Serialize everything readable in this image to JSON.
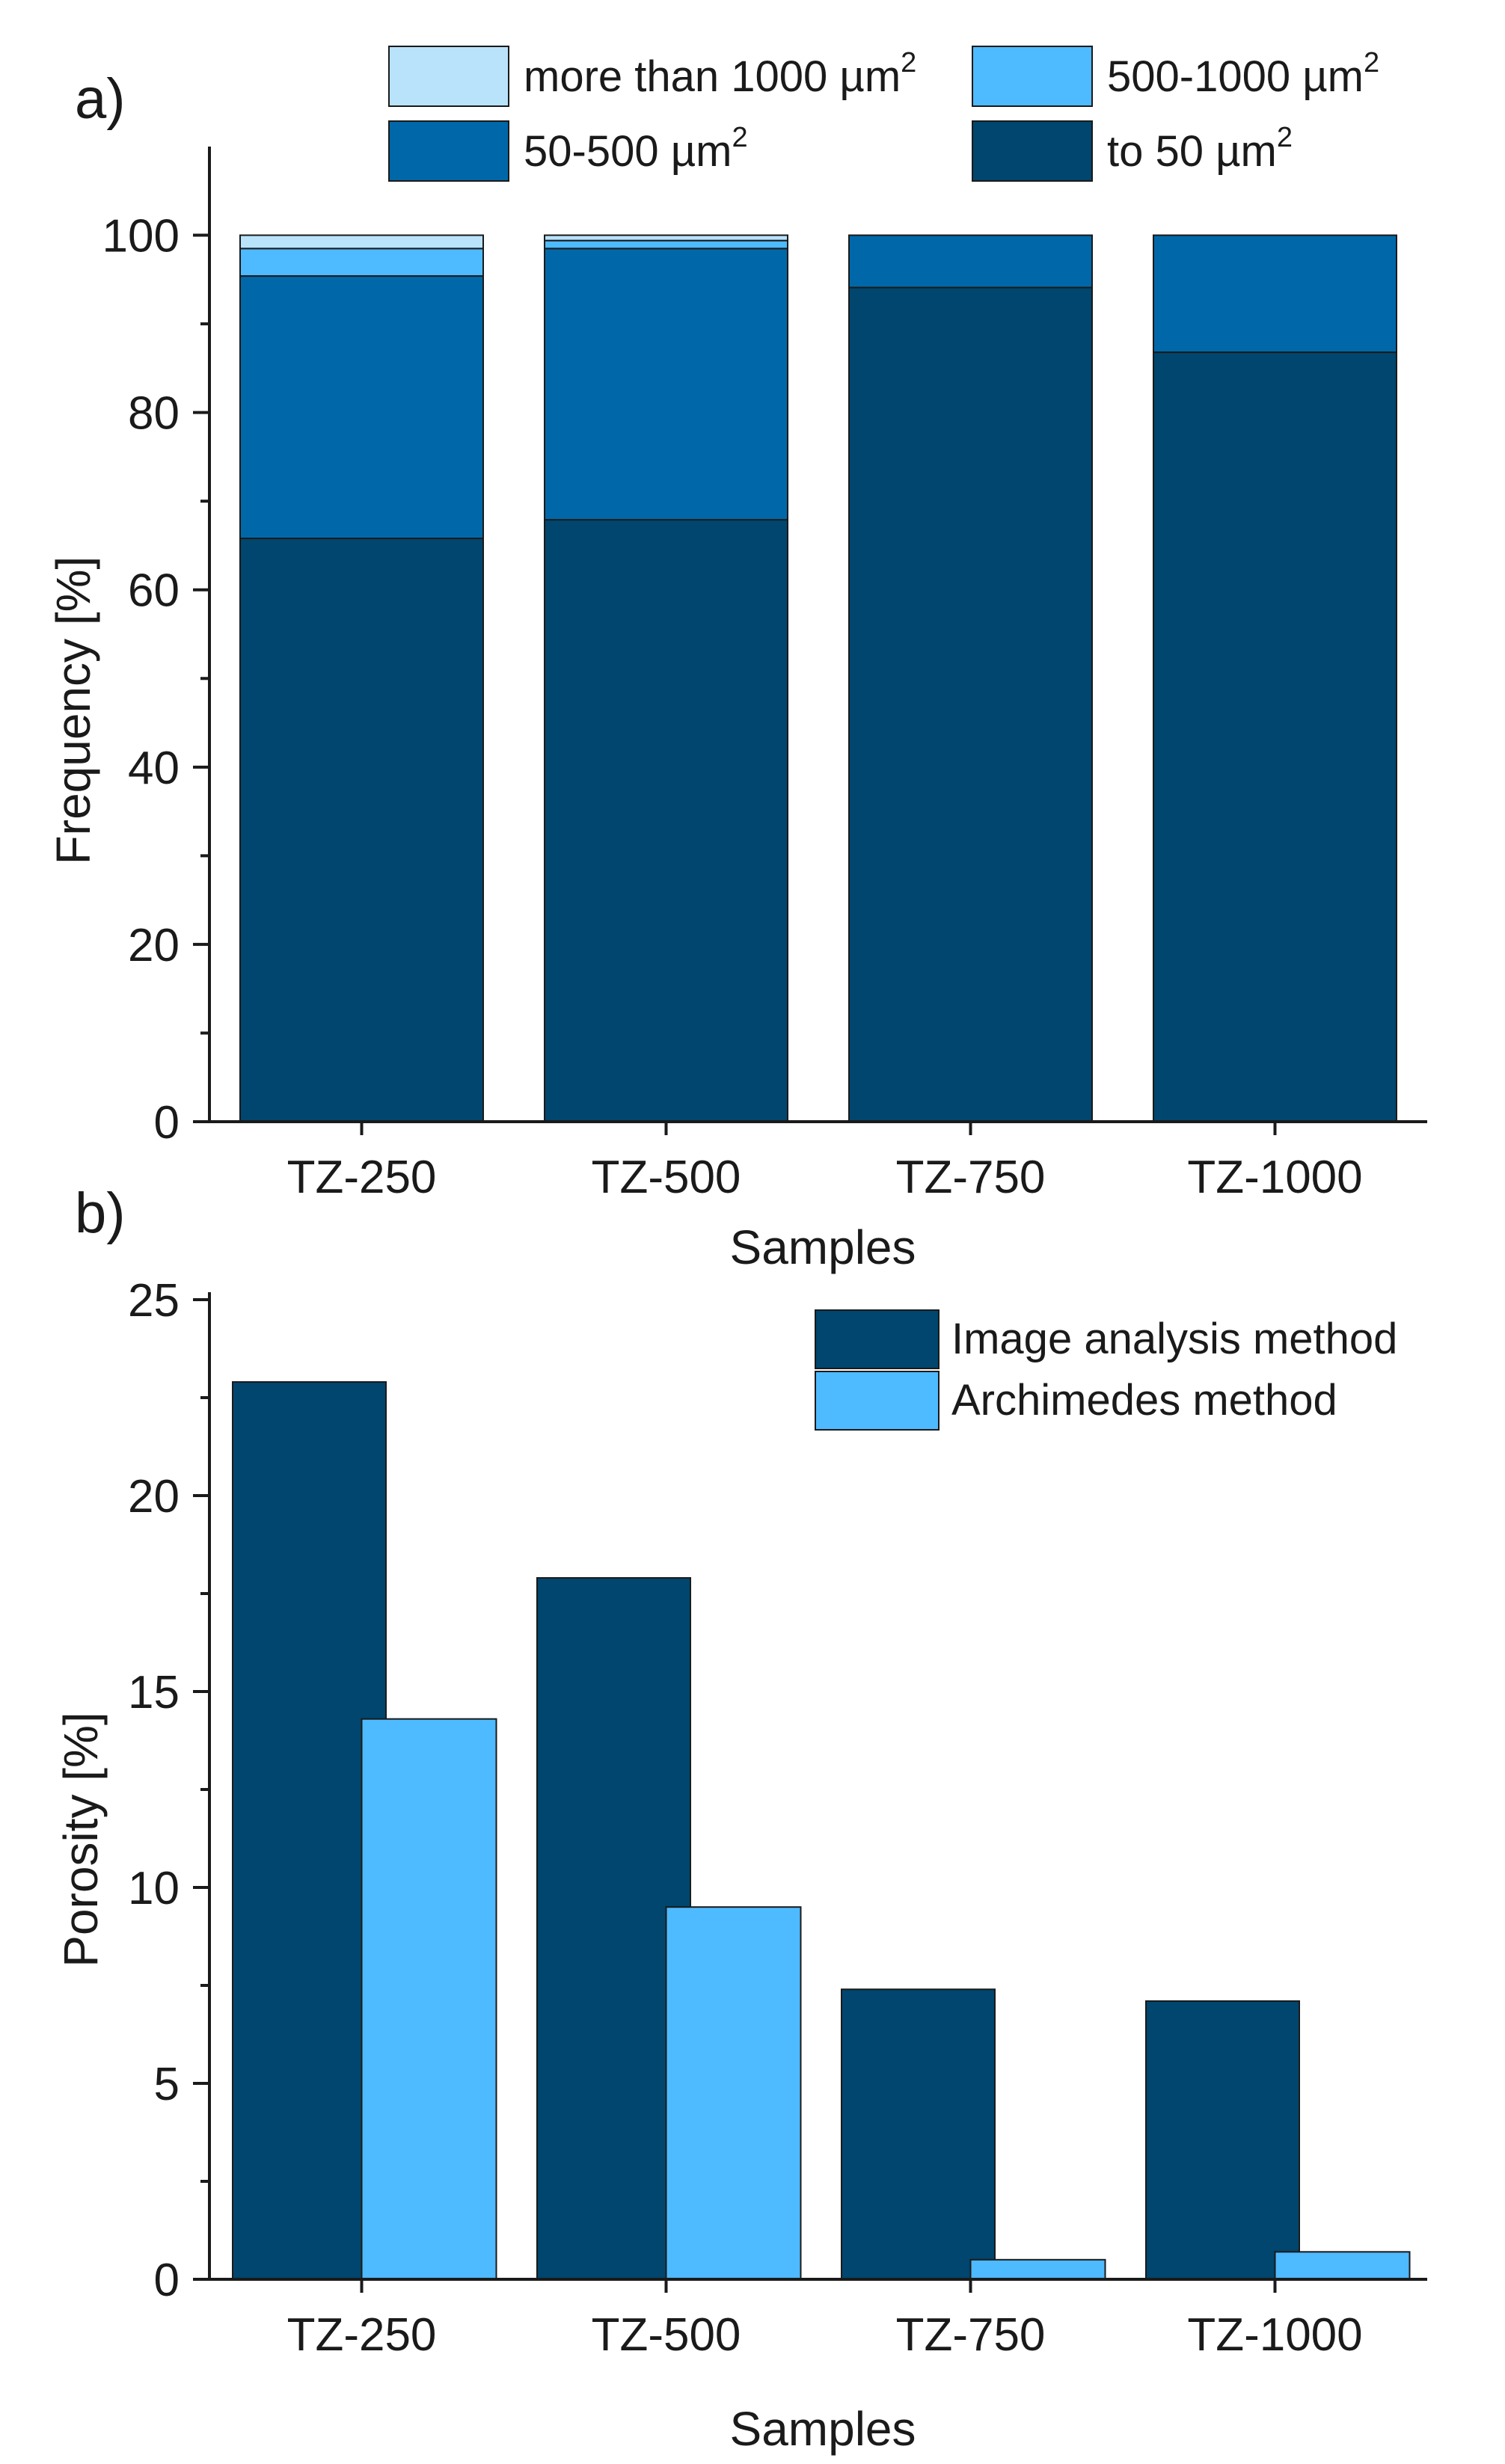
{
  "colors": {
    "dark": "#00466e",
    "medium": "#0068a8",
    "light": "#4ebaff",
    "lightest": "#b9e3fa",
    "axis": "#1a1a1a"
  },
  "chart_data": [
    {
      "panel_label": "a)",
      "type": "bar",
      "stacked": true,
      "categories": [
        "TZ-250",
        "TZ-500",
        "TZ-750",
        "TZ-1000"
      ],
      "series": [
        {
          "name": "to 50 µm²",
          "label_base": "to 50 µm",
          "color_key": "dark",
          "values": [
            65.8,
            67.9,
            94.1,
            86.8
          ]
        },
        {
          "name": "50-500 µm²",
          "label_base": "50-500 µm",
          "color_key": "medium",
          "values": [
            29.6,
            30.6,
            5.9,
            13.2
          ]
        },
        {
          "name": "500-1000 µm²",
          "label_base": "500-1000 µm",
          "color_key": "light",
          "values": [
            3.1,
            0.9,
            0,
            0
          ]
        },
        {
          "name": "more than 1000 µm²",
          "label_base": "more than 1000 µm",
          "color_key": "lightest",
          "values": [
            1.5,
            0.6,
            0,
            0
          ]
        }
      ],
      "legend_order": [
        3,
        2,
        1,
        0
      ],
      "superscript": "2",
      "xlabel": "Samples",
      "ylabel": "Frequency [%]",
      "ylim": [
        0,
        110
      ],
      "yticks": [
        0,
        20,
        40,
        60,
        80,
        100
      ],
      "grid": false
    },
    {
      "panel_label": "b)",
      "type": "bar",
      "stacked": false,
      "categories": [
        "TZ-250",
        "TZ-500",
        "TZ-750",
        "TZ-1000"
      ],
      "series": [
        {
          "name": "Image analysis method",
          "color_key": "dark",
          "values": [
            22.9,
            17.9,
            7.4,
            7.1
          ]
        },
        {
          "name": "Archimedes method",
          "color_key": "light",
          "values": [
            14.3,
            9.5,
            0.5,
            0.7
          ]
        }
      ],
      "xlabel": "Samples",
      "ylabel": "Porosity [%]",
      "ylim": [
        0,
        25
      ],
      "yticks": [
        0,
        5,
        10,
        15,
        20,
        25
      ],
      "grid": false
    }
  ]
}
